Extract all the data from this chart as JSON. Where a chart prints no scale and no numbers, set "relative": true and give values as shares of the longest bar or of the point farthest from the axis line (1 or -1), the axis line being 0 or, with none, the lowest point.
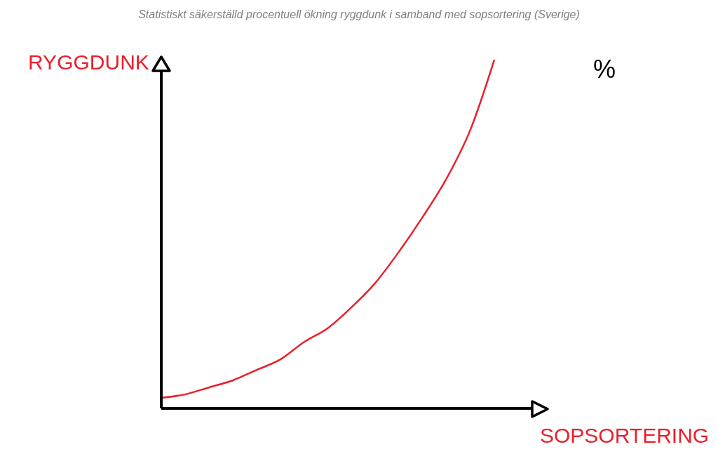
{
  "chart_data": {
    "type": "line",
    "title": "Statistiskt säkerställd procentuell ökning ryggdunk i samband med sopsortering (Sverige)",
    "xlabel": "SOPSORTERING",
    "ylabel": "RYGGDUNK",
    "annotations": [
      "%"
    ],
    "relative": true,
    "categories": [
      null,
      null,
      null,
      null,
      null,
      null,
      null,
      null,
      null,
      null,
      null,
      null,
      null,
      null,
      null
    ],
    "series": [
      {
        "color": "#e8202a",
        "values": [
          0.03,
          0.04,
          0.06,
          0.08,
          0.11,
          0.14,
          0.19,
          0.23,
          0.29,
          0.36,
          0.45,
          0.55,
          0.66,
          0.8,
          1
        ]
      }
    ]
  }
}
